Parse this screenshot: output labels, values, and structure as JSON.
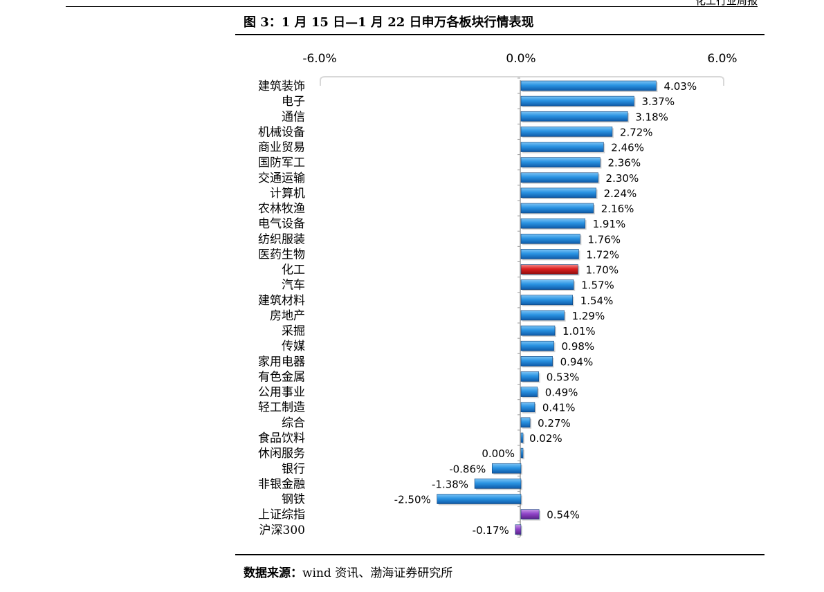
{
  "header": {
    "fragment": "化工行业周报"
  },
  "figure": {
    "title": "图 3：1 月 15 日—1 月 22 日申万各板块行情表现",
    "source_label": "数据来源：",
    "source_text": "wind 资讯、渤海证券研究所"
  },
  "colors": {
    "default_bar": "#1f8fe0",
    "highlight_bar": "#d81e1e",
    "index_bar": "#8a3fc4"
  },
  "chart_data": {
    "type": "bar",
    "orientation": "horizontal",
    "title": "",
    "xlabel": "",
    "ylabel": "",
    "xlim": [
      -6.0,
      6.0
    ],
    "x_ticks": [
      "-6.0%",
      "0.0%",
      "6.0%"
    ],
    "x_tick_values": [
      -6.0,
      0.0,
      6.0
    ],
    "grid": false,
    "legend": "none",
    "categories": [
      "建筑装饰",
      "电子",
      "通信",
      "机械设备",
      "商业贸易",
      "国防军工",
      "交通运输",
      "计算机",
      "农林牧渔",
      "电气设备",
      "纺织服装",
      "医药生物",
      "化工",
      "汽车",
      "建筑材料",
      "房地产",
      "采掘",
      "传媒",
      "家用电器",
      "有色金属",
      "公用事业",
      "轻工制造",
      "综合",
      "食品饮料",
      "休闲服务",
      "银行",
      "非银金融",
      "钢铁",
      "上证综指",
      "沪深300"
    ],
    "values": [
      4.03,
      3.37,
      3.18,
      2.72,
      2.46,
      2.36,
      2.3,
      2.24,
      2.16,
      1.91,
      1.76,
      1.72,
      1.7,
      1.57,
      1.54,
      1.29,
      1.01,
      0.98,
      0.94,
      0.53,
      0.49,
      0.41,
      0.27,
      0.02,
      0.0,
      -0.86,
      -1.38,
      -2.5,
      0.54,
      -0.17
    ],
    "value_labels": [
      "4.03%",
      "3.37%",
      "3.18%",
      "2.72%",
      "2.46%",
      "2.36%",
      "2.30%",
      "2.24%",
      "2.16%",
      "1.91%",
      "1.76%",
      "1.72%",
      "1.70%",
      "1.57%",
      "1.54%",
      "1.29%",
      "1.01%",
      "0.98%",
      "0.94%",
      "0.53%",
      "0.49%",
      "0.41%",
      "0.27%",
      "0.02%",
      "0.00%",
      "-0.86%",
      "-1.38%",
      "-2.50%",
      "0.54%",
      "-0.17%"
    ],
    "bar_color_keys": [
      "default_bar",
      "default_bar",
      "default_bar",
      "default_bar",
      "default_bar",
      "default_bar",
      "default_bar",
      "default_bar",
      "default_bar",
      "default_bar",
      "default_bar",
      "default_bar",
      "highlight_bar",
      "default_bar",
      "default_bar",
      "default_bar",
      "default_bar",
      "default_bar",
      "default_bar",
      "default_bar",
      "default_bar",
      "default_bar",
      "default_bar",
      "default_bar",
      "default_bar",
      "default_bar",
      "default_bar",
      "default_bar",
      "index_bar",
      "index_bar"
    ]
  }
}
